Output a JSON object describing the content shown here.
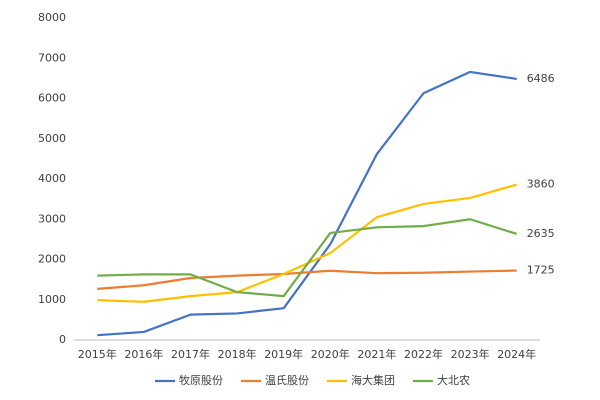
{
  "chart_data": {
    "type": "line",
    "categories": [
      "2015年",
      "2016年",
      "2017年",
      "2018年",
      "2019年",
      "2020年",
      "2021年",
      "2022年",
      "2023年",
      "2024年"
    ],
    "series": [
      {
        "name": "牧原股份",
        "color": "#4472c4",
        "values": [
          120,
          200,
          630,
          660,
          790,
          2380,
          4620,
          6130,
          6660,
          6486
        ]
      },
      {
        "name": "温氏股份",
        "color": "#ed7d31",
        "values": [
          1270,
          1360,
          1540,
          1600,
          1640,
          1720,
          1660,
          1670,
          1700,
          1725
        ]
      },
      {
        "name": "海大集团",
        "color": "#ffc000",
        "values": [
          990,
          950,
          1090,
          1190,
          1640,
          2160,
          3050,
          3380,
          3530,
          3860
        ]
      },
      {
        "name": "大北农",
        "color": "#70ad47",
        "values": [
          1600,
          1630,
          1630,
          1190,
          1090,
          2660,
          2800,
          2830,
          3000,
          2635
        ]
      }
    ],
    "ylim": [
      0,
      8000
    ],
    "yticks": [
      0,
      1000,
      2000,
      3000,
      4000,
      5000,
      6000,
      7000,
      8000
    ],
    "grid": false,
    "legend": "bottom"
  }
}
